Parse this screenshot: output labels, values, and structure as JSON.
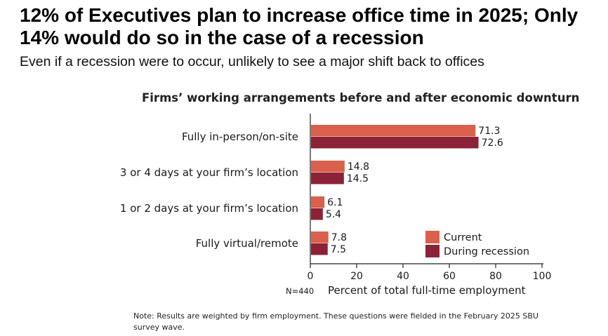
{
  "headline": "12% of Executives plan to increase office time in 2025; Only 14% would do so in the case of a recession",
  "subheadline": "Even if a recession were to occur, unlikely to see a major shift back to offices",
  "note": "Note: Results are weighted by firm employment. These questions were fielded in the February 2025 SBU survey wave.",
  "chart_data": {
    "type": "bar",
    "orientation": "horizontal",
    "title": "Firms’ working arrangements before and after economic downturn",
    "categories": [
      "Fully in-person/on-site",
      "3 or 4 days at your firm’s location",
      "1 or 2 days at your firm’s location",
      "Fully virtual/remote"
    ],
    "series": [
      {
        "name": "Current",
        "color": "#d9604c",
        "values": [
          71.3,
          14.8,
          6.1,
          7.8
        ]
      },
      {
        "name": "During recession",
        "color": "#8c2237",
        "values": [
          72.6,
          14.5,
          5.4,
          7.5
        ]
      }
    ],
    "xlabel": "Percent of total full-time employment",
    "xlim": [
      0,
      100
    ],
    "xticks": [
      0,
      20,
      40,
      60,
      80,
      100
    ],
    "sample_note": "N=440",
    "legend_position": "bottom-right",
    "grid": false
  }
}
